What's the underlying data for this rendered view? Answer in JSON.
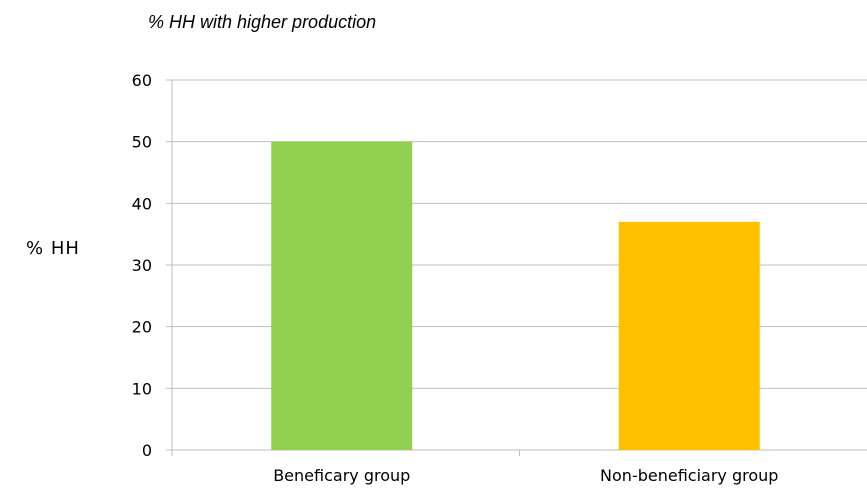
{
  "chart_data": {
    "type": "bar",
    "title": "% HH with higher production",
    "xlabel": "",
    "ylabel": "% HH",
    "categories": [
      "Beneficary group",
      "Non-beneficiary group"
    ],
    "values": [
      50,
      37
    ],
    "bar_colors": [
      "#92D050",
      "#FFC000"
    ],
    "ylim": [
      0,
      60
    ],
    "yticks": [
      0,
      10,
      20,
      30,
      40,
      50,
      60
    ],
    "grid": true,
    "grid_color": "#bfbfbf",
    "axis_color": "#bfbfbf"
  }
}
